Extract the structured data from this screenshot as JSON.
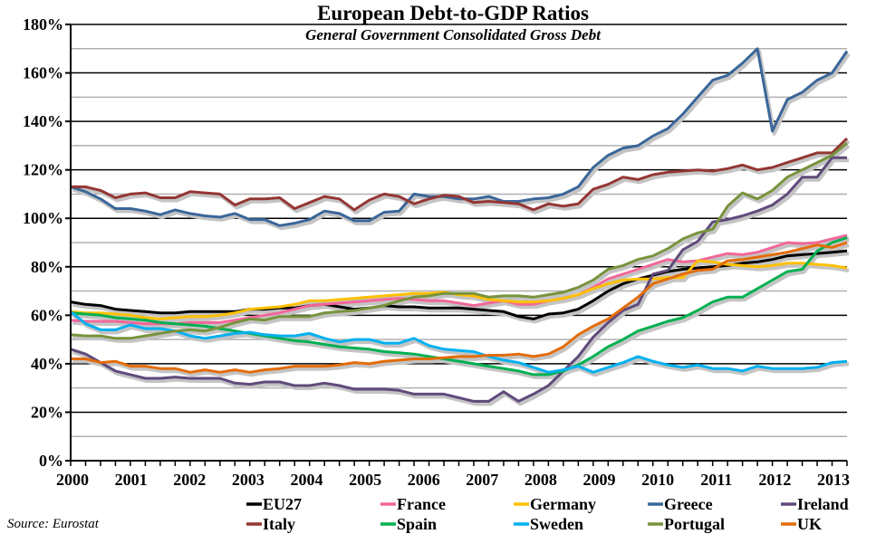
{
  "chart_data": {
    "type": "line",
    "title": "European Debt-to-GDP Ratios",
    "subtitle": "General Government Consolidated Gross Debt",
    "source": "Source: Eurostat",
    "xlabel": "",
    "ylabel": "",
    "frequency": "quarterly",
    "x_tick_labels": [
      "2000",
      "2001",
      "2002",
      "2003",
      "2004",
      "2005",
      "2006",
      "2007",
      "2008",
      "2009",
      "2010",
      "2011",
      "2012",
      "2013"
    ],
    "y_tick_labels": [
      "0%",
      "20%",
      "40%",
      "60%",
      "80%",
      "100%",
      "120%",
      "140%",
      "160%",
      "180%"
    ],
    "ylim": [
      0,
      180
    ],
    "grid": true,
    "legend_position": "bottom",
    "series": [
      {
        "name": "EU27",
        "color": "#000000",
        "values": [
          65.5,
          64.5,
          64,
          62.5,
          62,
          61.5,
          61,
          61,
          61.5,
          61.5,
          61.5,
          61.5,
          62.5,
          62.5,
          63,
          63,
          64,
          64.5,
          63.5,
          62.5,
          63,
          64,
          63.5,
          63.5,
          63,
          63,
          63,
          62.5,
          62,
          61.5,
          59.5,
          58.5,
          60.5,
          61,
          62.5,
          66,
          70,
          73,
          75,
          76.5,
          78,
          79,
          79.5,
          80,
          80.5,
          81.5,
          82,
          83,
          84.5,
          85,
          85.5,
          86,
          86.6
        ]
      },
      {
        "name": "France",
        "color": "#F2679A",
        "values": [
          58,
          57.5,
          57.5,
          57.5,
          57,
          56.5,
          56.5,
          56.5,
          57,
          57,
          57,
          58,
          59,
          60,
          61,
          62.5,
          64,
          64.5,
          65,
          65.5,
          66,
          66.5,
          67,
          66.5,
          66,
          66,
          65,
          64,
          65,
          66,
          64.5,
          64.5,
          66,
          67,
          68.5,
          71.5,
          75,
          77,
          79,
          81,
          83,
          82,
          82.5,
          84,
          85.5,
          85,
          86,
          88,
          90,
          89.5,
          90,
          91.5,
          93
        ]
      },
      {
        "name": "Germany",
        "color": "#FFC000",
        "values": [
          61.5,
          61,
          61,
          60.5,
          60,
          59,
          58.5,
          59,
          59.5,
          59.5,
          60,
          61,
          62.5,
          63,
          63.5,
          64.5,
          66,
          66,
          66.5,
          67,
          67.5,
          68,
          68.5,
          69,
          69,
          69.5,
          68.5,
          68,
          66.5,
          66,
          65.5,
          65.5,
          66,
          67,
          68.5,
          71,
          73,
          74.5,
          75,
          75,
          75.5,
          75.5,
          82.5,
          82,
          81,
          80.5,
          80,
          80.5,
          81.5,
          81.5,
          81,
          80.5,
          79.5
        ]
      },
      {
        "name": "Greece",
        "color": "#3A6699",
        "values": [
          113,
          111,
          108,
          104,
          104,
          103,
          101.5,
          103.5,
          102,
          101,
          100.5,
          102,
          99.5,
          99.5,
          97,
          98,
          99.5,
          103,
          102,
          99,
          99,
          102.5,
          103,
          110,
          109,
          109,
          108,
          108,
          109,
          107,
          107,
          108,
          108.5,
          110,
          113,
          121,
          126,
          129,
          130,
          134,
          137,
          143,
          150,
          157,
          159,
          164,
          170,
          136,
          149,
          152,
          157,
          160,
          169
        ]
      },
      {
        "name": "Ireland",
        "color": "#604A7B",
        "values": [
          46,
          44,
          40.5,
          37,
          35.5,
          34,
          34,
          34.5,
          34,
          34,
          34,
          32,
          31.5,
          32.5,
          32.5,
          31,
          31,
          32,
          31,
          29.5,
          29.5,
          29.5,
          29,
          27.5,
          27.5,
          27.5,
          26,
          24.5,
          24.5,
          28.5,
          24.5,
          27.5,
          31,
          37,
          43,
          51,
          57,
          62,
          64.5,
          77,
          78.5,
          87,
          90.5,
          98.5,
          99.5,
          101,
          103,
          105.5,
          110,
          117,
          117,
          125,
          125
        ]
      },
      {
        "name": "Italy",
        "color": "#943634",
        "values": [
          113,
          113,
          111.5,
          108.5,
          110,
          110.5,
          108.5,
          108.5,
          111,
          110.5,
          110,
          105.5,
          108,
          108,
          108.5,
          104,
          106.5,
          109,
          108,
          103.5,
          107.5,
          110,
          109,
          106,
          108,
          109.5,
          109,
          106.5,
          107,
          106.5,
          106,
          103.5,
          106,
          105,
          106,
          112,
          114,
          117,
          116,
          118,
          119,
          119.5,
          120,
          119.5,
          120.5,
          122,
          120,
          121,
          123,
          125,
          127,
          127,
          133
        ]
      },
      {
        "name": "Spain",
        "color": "#00B050",
        "values": [
          61,
          60.5,
          60,
          59,
          58.5,
          58,
          57,
          56.5,
          56,
          55.5,
          54.5,
          53.5,
          52.5,
          51.5,
          50.5,
          49.5,
          49,
          48,
          47,
          46.5,
          46,
          45,
          44.5,
          44,
          43,
          42,
          41,
          40,
          39,
          38,
          37,
          35.5,
          35.5,
          37,
          39.5,
          43,
          47,
          50,
          53.5,
          55.5,
          57.5,
          59,
          62,
          65.5,
          67.5,
          67.5,
          71,
          74.5,
          78,
          79,
          86.5,
          90,
          92
        ]
      },
      {
        "name": "Sweden",
        "color": "#00B0F0",
        "values": [
          61.5,
          56.5,
          54,
          54,
          56,
          54.5,
          54.5,
          53.5,
          51.5,
          50.5,
          51.5,
          52.5,
          53,
          52,
          51.5,
          51.5,
          52.5,
          50.5,
          49,
          50,
          50,
          48.5,
          48.5,
          50.5,
          47.5,
          46,
          45.5,
          45,
          43,
          41.5,
          40.5,
          38.5,
          36.5,
          37.5,
          39,
          36.5,
          38.5,
          40.5,
          43,
          41,
          39.5,
          38.5,
          39.5,
          38,
          38,
          37,
          39,
          38,
          38,
          38,
          38.5,
          40.5,
          41
        ]
      },
      {
        "name": "Portugal",
        "color": "#77933C",
        "values": [
          52,
          51.5,
          51.5,
          50.5,
          50.5,
          51.5,
          52.5,
          53.5,
          54,
          53.5,
          55,
          57,
          58.5,
          58,
          59.5,
          59.5,
          59.5,
          61,
          61.5,
          62,
          63,
          64,
          66,
          67.5,
          68,
          69,
          69,
          69,
          67.5,
          68,
          68,
          67.5,
          68.5,
          69.5,
          71.5,
          74.5,
          79,
          80.5,
          83,
          84.5,
          87.5,
          91.5,
          94,
          95.5,
          105,
          110.5,
          108,
          111.5,
          117,
          120,
          123,
          126,
          131
        ]
      },
      {
        "name": "UK",
        "color": "#E36C09",
        "values": [
          42,
          42,
          40.5,
          41,
          39,
          39,
          38,
          38,
          36.5,
          37.5,
          36.5,
          37.5,
          36.5,
          37.5,
          38,
          39,
          39,
          39,
          39.5,
          40.5,
          40,
          41,
          41.5,
          42,
          42,
          42.5,
          43,
          43,
          43.5,
          43.5,
          44,
          43,
          44,
          47,
          52,
          55.5,
          58.5,
          63,
          67.5,
          73,
          75,
          77,
          78.5,
          79,
          82.5,
          83,
          84,
          85,
          86,
          87.5,
          89,
          88,
          90
        ]
      }
    ]
  }
}
